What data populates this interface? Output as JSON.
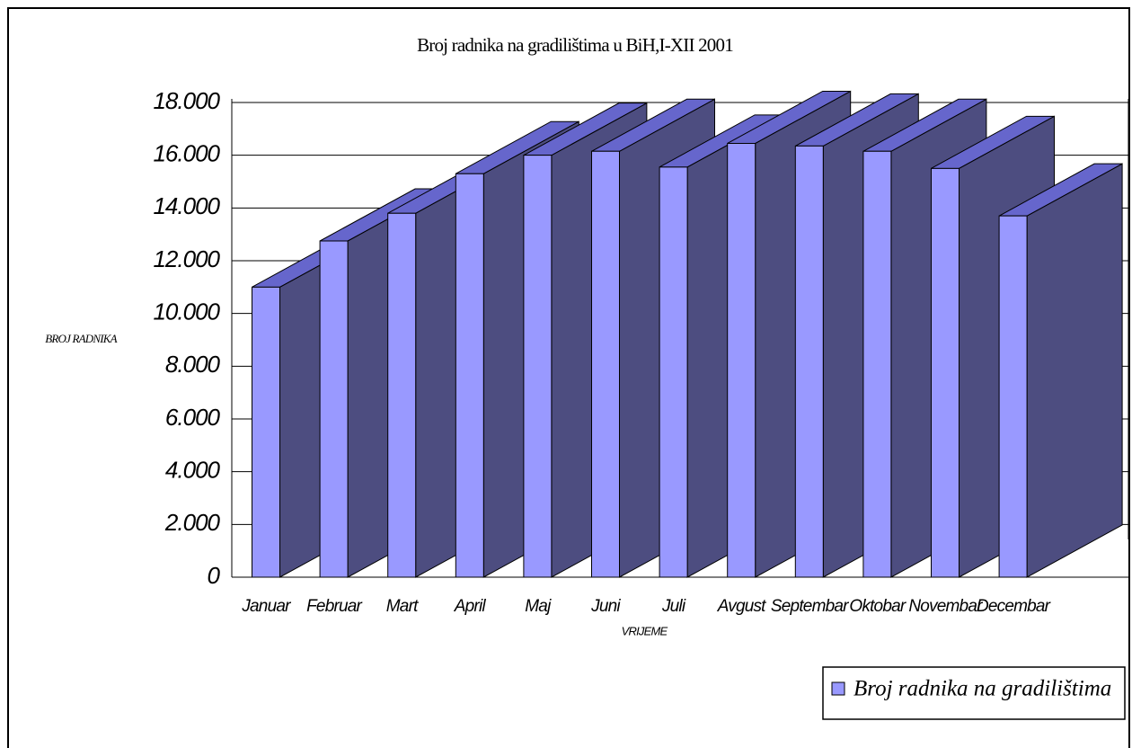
{
  "chart_data": {
    "type": "bar3d",
    "title": "Broj radnika na gradilištima u BiH,I-XII 2001",
    "x_label": "VRIJEME",
    "y_label": "BROJ RADNIKA",
    "categories": [
      "Januar",
      "Februar",
      "Mart",
      "April",
      "Maj",
      "Juni",
      "Juli",
      "Avgust",
      "Septembar",
      "Oktobar",
      "Novembar",
      "Decembar"
    ],
    "series": [
      {
        "name": "Broj radnika na gradilištima",
        "color": "#9999ff",
        "values": [
          11000,
          12750,
          13800,
          15300,
          16000,
          16150,
          15550,
          16450,
          16350,
          16150,
          15500,
          13700
        ]
      }
    ],
    "ylim": [
      0,
      18000
    ],
    "yticks": [
      0,
      {
        "value": 2000,
        "label": "2.000"
      },
      {
        "value": 4000,
        "label": "4.000"
      },
      {
        "value": 6000,
        "label": "6.000"
      },
      {
        "value": 8000,
        "label": "8.000"
      },
      {
        "value": 10000,
        "label": "10.000"
      },
      {
        "value": 12000,
        "label": "12.000"
      },
      {
        "value": 14000,
        "label": "14.000"
      },
      {
        "value": 16000,
        "label": "16.000"
      },
      {
        "value": 18000,
        "label": "18.000"
      }
    ],
    "grid": true,
    "legend": "bottom-right"
  }
}
